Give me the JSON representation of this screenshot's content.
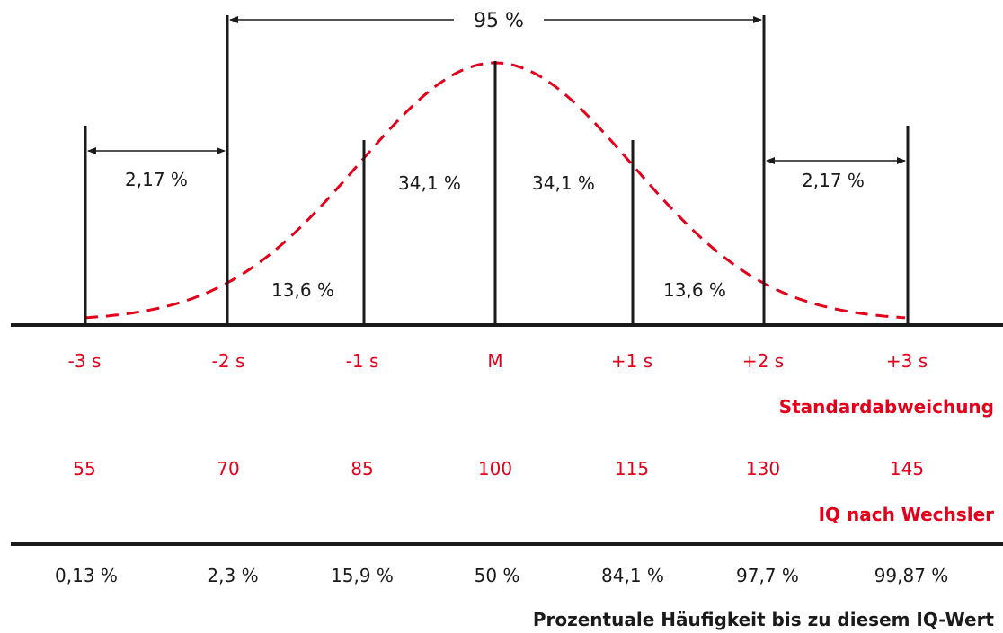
{
  "colors": {
    "ink": "#1a1a1a",
    "accent": "#e3001b",
    "background": "#ffffff"
  },
  "span_label_95": "95 %",
  "tail_labels": [
    "2,17 %",
    "2,17 %"
  ],
  "region_labels": [
    "13,6 %",
    "34,1 %",
    "34,1 %",
    "13,6 %"
  ],
  "sd_labels": [
    "-3 s",
    "-2 s",
    "-1 s",
    "M",
    "+1 s",
    "+2 s",
    "+3 s"
  ],
  "sd_caption": "Standardabweichung",
  "iq_values": [
    "55",
    "70",
    "85",
    "100",
    "115",
    "130",
    "145"
  ],
  "iq_caption": "IQ nach Wechsler",
  "cumulative_percent": [
    "0,13 %",
    "2,3 %",
    "15,9 %",
    "50 %",
    "84,1 %",
    "97,7 %",
    "99,87 %"
  ],
  "cumulative_caption": "Prozentuale Häufigkeit bis zu diesem IQ-Wert"
}
